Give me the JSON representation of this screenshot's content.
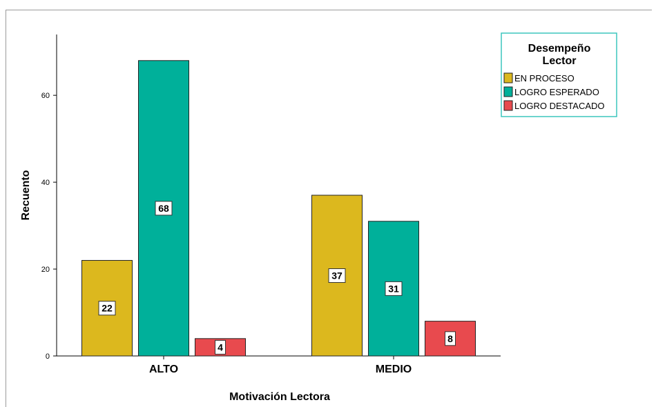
{
  "chart_data": {
    "type": "bar",
    "categories": [
      "ALTO",
      "MEDIO"
    ],
    "series": [
      {
        "name": "EN PROCESO",
        "color": "#dcb81e",
        "values": [
          22,
          37
        ]
      },
      {
        "name": "LOGRO ESPERADO",
        "color": "#00b09a",
        "values": [
          68,
          31
        ]
      },
      {
        "name": "LOGRO DESTACADO",
        "color": "#e84a4e",
        "values": [
          4,
          8
        ]
      }
    ],
    "xlabel": "Motivación Lectora",
    "ylabel": "Recuento",
    "ylim": [
      0,
      74
    ],
    "yticks": [
      0,
      20,
      40,
      60
    ],
    "legend_title": "Desempeño Lector",
    "legend_position": "top-right",
    "grid": false
  }
}
